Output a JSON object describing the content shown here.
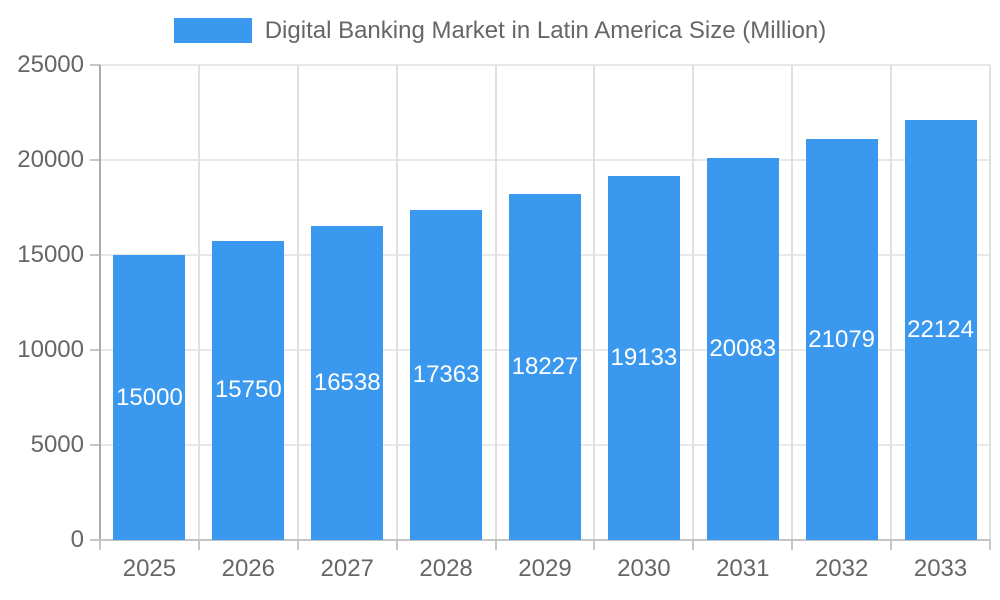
{
  "legend": {
    "label": "Digital Banking Market in Latin America Size (Million)"
  },
  "chart_data": {
    "type": "bar",
    "title": "Digital Banking Market in Latin America Size (Million)",
    "series_name": "Digital Banking Market in Latin America Size (Million)",
    "categories": [
      "2025",
      "2026",
      "2027",
      "2028",
      "2029",
      "2030",
      "2031",
      "2032",
      "2033"
    ],
    "values": [
      15000,
      15750,
      16538,
      17363,
      18227,
      19133,
      20083,
      21079,
      22124
    ],
    "bar_value_labels": [
      "15000",
      "15750",
      "16538",
      "17363",
      "18227",
      "19133",
      "20083",
      "21079",
      "22124"
    ],
    "xlabel": "",
    "ylabel": "",
    "ylim": [
      0,
      25000
    ],
    "yticks": [
      0,
      5000,
      10000,
      15000,
      20000,
      25000
    ],
    "ytick_labels": [
      "0",
      "5000",
      "10000",
      "15000",
      "20000",
      "25000"
    ],
    "grid": true,
    "legend_position": "top",
    "colors": {
      "bar": "#3a99ee",
      "bar_label": "#ffffff",
      "axis_text": "#666666",
      "title_text": "#666666",
      "grid_horizontal": "#e8e8e8",
      "grid_vertical": "#e0e0e0",
      "tick": "#c6c6c6",
      "y_axis_line": "#ababab",
      "x_axis_line": "#c4c4c4",
      "background": "#ffffff"
    }
  }
}
